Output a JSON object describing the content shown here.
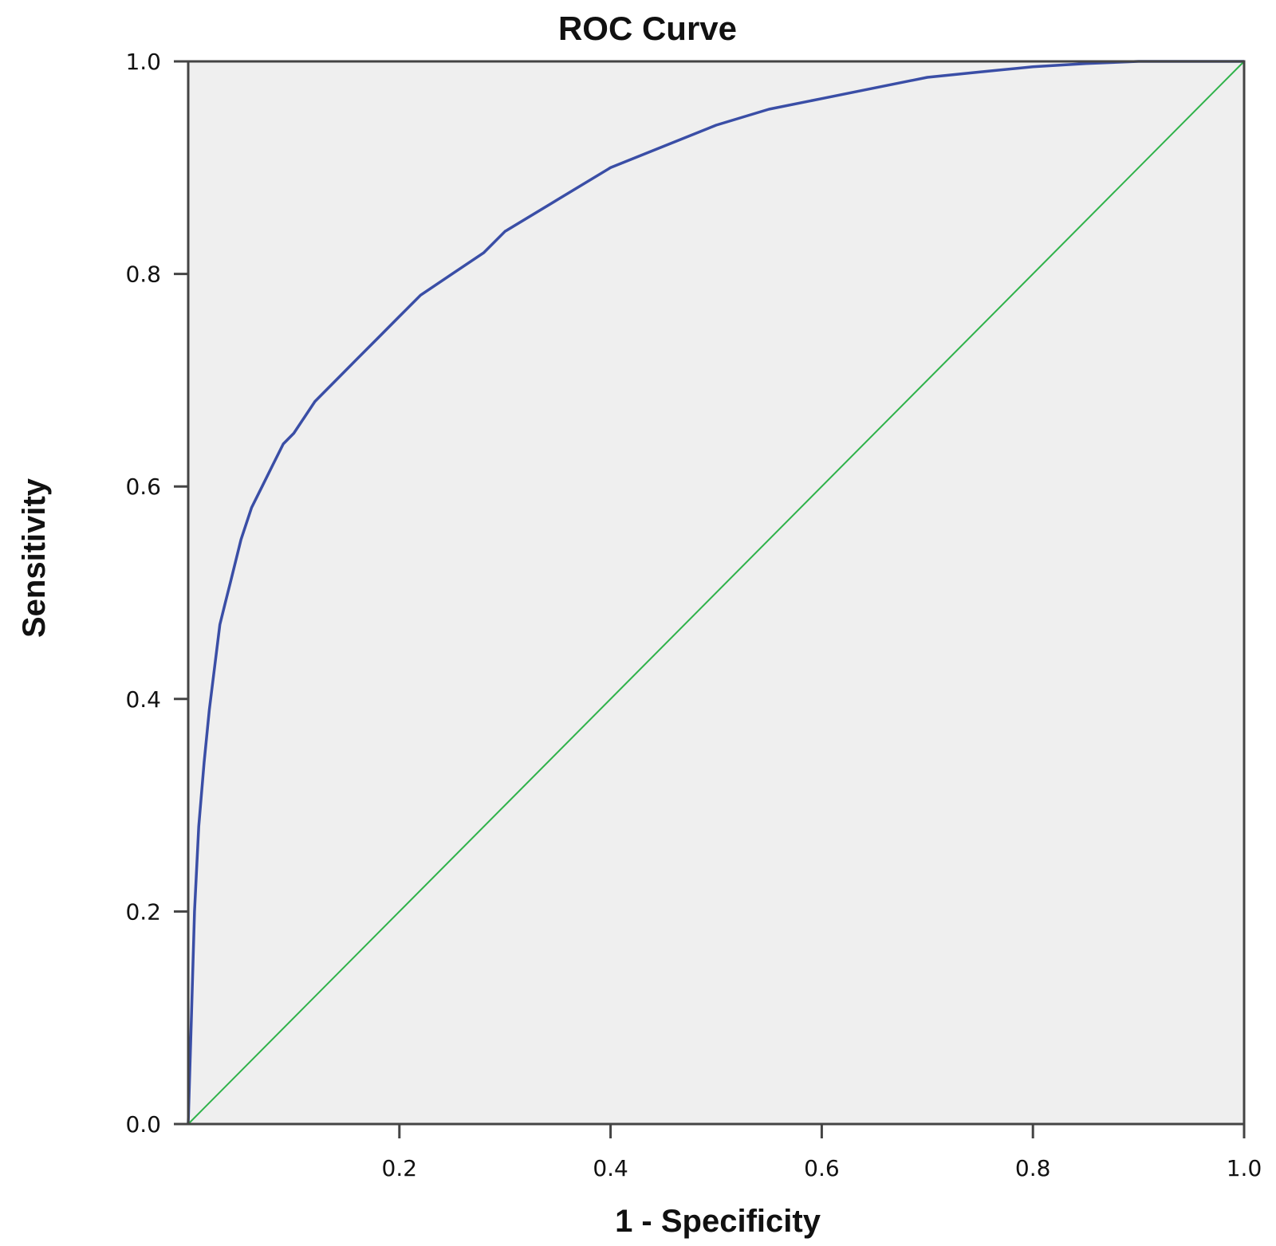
{
  "chart_data": {
    "type": "line",
    "title": "ROC Curve",
    "xlabel": "1 - Specificity",
    "ylabel": "Sensitivity",
    "xlim": [
      0,
      1
    ],
    "ylim": [
      0,
      1
    ],
    "grid": false,
    "x_ticks": [
      0.2,
      0.4,
      0.6,
      0.8,
      1.0
    ],
    "x_tick_labels": [
      "0.2",
      "0.4",
      "0.6",
      "0.8",
      "1.0"
    ],
    "y_ticks": [
      0.0,
      0.2,
      0.4,
      0.6,
      0.8,
      1.0
    ],
    "y_tick_labels": [
      "0.0",
      "0.2",
      "0.4",
      "0.6",
      "0.8",
      "1.0"
    ],
    "colors": {
      "background": "#efefef",
      "frame": "#444444",
      "roc": "#3a4ea6",
      "reference": "#2fb24a"
    },
    "series": [
      {
        "name": "ROC curve",
        "color": "#3a4ea6",
        "x": [
          0.0,
          0.003,
          0.006,
          0.01,
          0.015,
          0.02,
          0.025,
          0.03,
          0.035,
          0.04,
          0.05,
          0.06,
          0.07,
          0.08,
          0.09,
          0.1,
          0.12,
          0.14,
          0.16,
          0.18,
          0.2,
          0.22,
          0.25,
          0.28,
          0.3,
          0.35,
          0.4,
          0.45,
          0.5,
          0.55,
          0.6,
          0.65,
          0.7,
          0.75,
          0.8,
          0.85,
          0.9,
          0.95,
          1.0
        ],
        "y": [
          0.0,
          0.1,
          0.2,
          0.28,
          0.34,
          0.39,
          0.43,
          0.47,
          0.49,
          0.51,
          0.55,
          0.58,
          0.6,
          0.62,
          0.64,
          0.65,
          0.68,
          0.7,
          0.72,
          0.74,
          0.76,
          0.78,
          0.8,
          0.82,
          0.84,
          0.87,
          0.9,
          0.92,
          0.94,
          0.955,
          0.965,
          0.975,
          0.985,
          0.99,
          0.995,
          0.998,
          1.0,
          1.0,
          1.0
        ]
      },
      {
        "name": "Reference line",
        "color": "#2fb24a",
        "x": [
          0,
          1
        ],
        "y": [
          0,
          1
        ]
      }
    ]
  }
}
